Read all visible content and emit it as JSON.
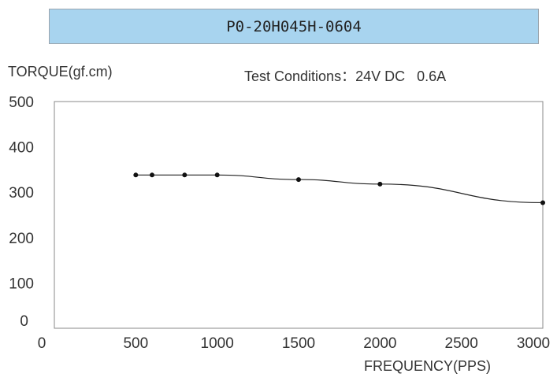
{
  "header": {
    "model": "P0-20H045H-0604"
  },
  "chart_data": {
    "type": "line",
    "ylabel": "TORQUE(gf.cm)",
    "xlabel": "FREQUENCY(PPS)",
    "annotation": "Test Conditions：24V DC   0.6A",
    "xlim": [
      0,
      3000
    ],
    "ylim": [
      0,
      500
    ],
    "xticks": [
      0,
      500,
      1000,
      1500,
      2000,
      2500,
      3000
    ],
    "yticks": [
      0,
      100,
      200,
      300,
      400,
      500
    ],
    "grid": false,
    "series": [
      {
        "x": [
          500,
          600,
          800,
          1000,
          1500,
          2000,
          3000
        ],
        "y": [
          338,
          338,
          338,
          338,
          328,
          318,
          277
        ]
      }
    ]
  }
}
